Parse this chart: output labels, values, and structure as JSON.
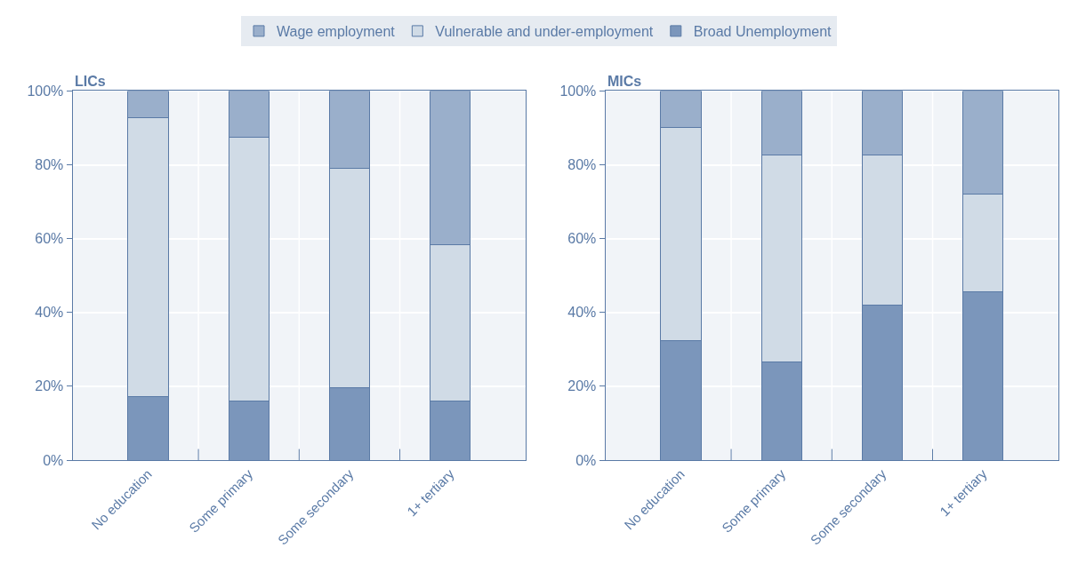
{
  "chart_data": [
    {
      "type": "bar",
      "title": "LICs",
      "stacked": true,
      "categories": [
        "No education",
        "Some primary",
        "Some secondary",
        "1+ tertiary"
      ],
      "series": [
        {
          "name": "Broad Unemployment",
          "color": "#7b96bb",
          "values": [
            17.3,
            16.1,
            19.5,
            15.9
          ]
        },
        {
          "name": "Vulnerable and under-employment",
          "color": "#d0dbe6",
          "values": [
            75.4,
            71.4,
            59.6,
            42.5
          ]
        },
        {
          "name": "Wage employment",
          "color": "#9aafcb",
          "values": [
            7.3,
            12.5,
            20.9,
            41.6
          ]
        }
      ],
      "ylim": [
        0,
        100
      ],
      "yticks": [
        {
          "value": 0,
          "label": "0%"
        },
        {
          "value": 20,
          "label": "20%"
        },
        {
          "value": 40,
          "label": "40%"
        },
        {
          "value": 60,
          "label": "60%"
        },
        {
          "value": 80,
          "label": "80%"
        },
        {
          "value": 100,
          "label": "100%"
        }
      ],
      "grid": true,
      "legend": "top"
    },
    {
      "type": "bar",
      "title": "MICs",
      "stacked": true,
      "categories": [
        "No education",
        "Some primary",
        "Some secondary",
        "1+ tertiary"
      ],
      "series": [
        {
          "name": "Broad Unemployment",
          "color": "#7b96bb",
          "values": [
            32.3,
            26.6,
            42.0,
            45.7
          ]
        },
        {
          "name": "Vulnerable and under-employment",
          "color": "#d0dbe6",
          "values": [
            57.9,
            56.1,
            40.7,
            26.3
          ]
        },
        {
          "name": "Wage employment",
          "color": "#9aafcb",
          "values": [
            9.8,
            17.3,
            17.3,
            28.0
          ]
        }
      ],
      "ylim": [
        0,
        100
      ],
      "yticks": [
        {
          "value": 0,
          "label": "0%"
        },
        {
          "value": 20,
          "label": "20%"
        },
        {
          "value": 40,
          "label": "40%"
        },
        {
          "value": 60,
          "label": "60%"
        },
        {
          "value": 80,
          "label": "80%"
        },
        {
          "value": 100,
          "label": "100%"
        }
      ],
      "grid": true,
      "legend": "top"
    }
  ]
}
